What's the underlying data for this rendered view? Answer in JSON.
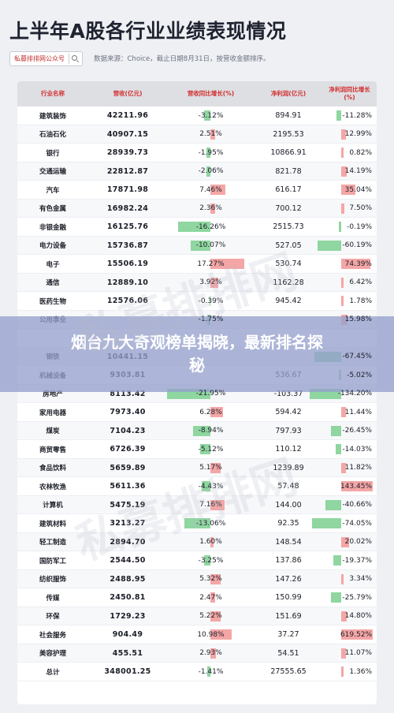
{
  "title": "上半年A股各行业业绩表现情况",
  "source": {
    "brand": "私募排排网公众号",
    "text": "数据来源：Choice，截止日期8月31日，按营收金额排序。"
  },
  "banner": "烟台九大奇观榜单揭晓，最新排名探秘",
  "watermark": "私募排排网",
  "colors": {
    "header_text": "#d22f2f",
    "pos_bar": "#f4a6a6",
    "neg_bar": "#8fd6a0",
    "banner": "#969ecd"
  },
  "table": {
    "columns": [
      "行业名称",
      "营收(亿元)",
      "营收同比增长(%)",
      "净利润(亿元)",
      "净利润同比增长(%)"
    ],
    "rows": [
      {
        "name": "建筑装饰",
        "revenue": "42211.96",
        "rev_growth": "-3.12%",
        "rg": -3.12,
        "net_profit": "894.91",
        "np_growth": "-11.28%",
        "npg": -11.28
      },
      {
        "name": "石油石化",
        "revenue": "40907.15",
        "rev_growth": "2.51%",
        "rg": 2.51,
        "net_profit": "2195.53",
        "np_growth": "12.99%",
        "npg": 12.99
      },
      {
        "name": "银行",
        "revenue": "28939.73",
        "rev_growth": "-1.95%",
        "rg": -1.95,
        "net_profit": "10866.91",
        "np_growth": "0.82%",
        "npg": 0.82
      },
      {
        "name": "交通运输",
        "revenue": "22812.87",
        "rev_growth": "-2.06%",
        "rg": -2.06,
        "net_profit": "821.78",
        "np_growth": "14.19%",
        "npg": 14.19
      },
      {
        "name": "汽车",
        "revenue": "17871.98",
        "rev_growth": "7.46%",
        "rg": 7.46,
        "net_profit": "616.17",
        "np_growth": "35.04%",
        "npg": 35.04
      },
      {
        "name": "有色金属",
        "revenue": "16982.24",
        "rev_growth": "2.36%",
        "rg": 2.36,
        "net_profit": "700.12",
        "np_growth": "7.50%",
        "npg": 7.5
      },
      {
        "name": "非银金融",
        "revenue": "16125.76",
        "rev_growth": "-16.26%",
        "rg": -16.26,
        "net_profit": "2515.73",
        "np_growth": "-0.19%",
        "npg": -0.19
      },
      {
        "name": "电力设备",
        "revenue": "15736.87",
        "rev_growth": "-10.07%",
        "rg": -10.07,
        "net_profit": "527.05",
        "np_growth": "-60.19%",
        "npg": -60.19
      },
      {
        "name": "电子",
        "revenue": "15506.19",
        "rev_growth": "17.27%",
        "rg": 17.27,
        "net_profit": "530.74",
        "np_growth": "74.39%",
        "npg": 74.39
      },
      {
        "name": "通信",
        "revenue": "12889.10",
        "rev_growth": "3.92%",
        "rg": 3.92,
        "net_profit": "1162.28",
        "np_growth": "6.42%",
        "npg": 6.42
      },
      {
        "name": "医药生物",
        "revenue": "12576.06",
        "rev_growth": "-0.39%",
        "rg": -0.39,
        "net_profit": "945.42",
        "np_growth": "1.78%",
        "npg": 1.78
      },
      {
        "name": "公用事业",
        "revenue": "",
        "rev_growth": "-1.75%",
        "rg": -1.75,
        "net_profit": "",
        "np_growth": "15.98%",
        "npg": 15.98
      },
      {
        "name": "",
        "revenue": "",
        "rev_growth": "",
        "rg": 0,
        "net_profit": "",
        "np_growth": "",
        "npg": 0
      },
      {
        "name": "钢铁",
        "revenue": "10441.15",
        "rev_growth": "",
        "rg": 0,
        "net_profit": "",
        "np_growth": "-67.45%",
        "npg": -67.45
      },
      {
        "name": "机械设备",
        "revenue": "9303.81",
        "rev_growth": "",
        "rg": 0,
        "net_profit": "536.67",
        "np_growth": "-5.02%",
        "npg": -5.02
      },
      {
        "name": "房地产",
        "revenue": "8113.42",
        "rev_growth": "-21.95%",
        "rg": -21.95,
        "net_profit": "-103.37",
        "np_growth": "-134.20%",
        "npg": -134.2
      },
      {
        "name": "家用电器",
        "revenue": "7973.40",
        "rev_growth": "6.28%",
        "rg": 6.28,
        "net_profit": "594.42",
        "np_growth": "11.44%",
        "npg": 11.44
      },
      {
        "name": "煤炭",
        "revenue": "7104.23",
        "rev_growth": "-8.94%",
        "rg": -8.94,
        "net_profit": "797.93",
        "np_growth": "-26.45%",
        "npg": -26.45
      },
      {
        "name": "商贸零售",
        "revenue": "6726.39",
        "rev_growth": "-5.12%",
        "rg": -5.12,
        "net_profit": "110.12",
        "np_growth": "-14.03%",
        "npg": -14.03
      },
      {
        "name": "食品饮料",
        "revenue": "5659.89",
        "rev_growth": "5.17%",
        "rg": 5.17,
        "net_profit": "1239.89",
        "np_growth": "11.82%",
        "npg": 11.82
      },
      {
        "name": "农林牧渔",
        "revenue": "5611.36",
        "rev_growth": "-4.43%",
        "rg": -4.43,
        "net_profit": "57.48",
        "np_growth": "143.45%",
        "npg": 143.45
      },
      {
        "name": "计算机",
        "revenue": "5475.19",
        "rev_growth": "7.16%",
        "rg": 7.16,
        "net_profit": "144.00",
        "np_growth": "-40.66%",
        "npg": -40.66
      },
      {
        "name": "建筑材料",
        "revenue": "3213.27",
        "rev_growth": "-13.06%",
        "rg": -13.06,
        "net_profit": "92.35",
        "np_growth": "-74.05%",
        "npg": -74.05
      },
      {
        "name": "轻工制造",
        "revenue": "2894.70",
        "rev_growth": "1.60%",
        "rg": 1.6,
        "net_profit": "148.54",
        "np_growth": "20.02%",
        "npg": 20.02
      },
      {
        "name": "国防军工",
        "revenue": "2544.50",
        "rev_growth": "-3.25%",
        "rg": -3.25,
        "net_profit": "137.86",
        "np_growth": "-19.37%",
        "npg": -19.37
      },
      {
        "name": "纺织服饰",
        "revenue": "2488.95",
        "rev_growth": "5.32%",
        "rg": 5.32,
        "net_profit": "147.26",
        "np_growth": "3.34%",
        "npg": 3.34
      },
      {
        "name": "传媒",
        "revenue": "2450.81",
        "rev_growth": "2.47%",
        "rg": 2.47,
        "net_profit": "150.99",
        "np_growth": "-25.79%",
        "npg": -25.79
      },
      {
        "name": "环保",
        "revenue": "1729.23",
        "rev_growth": "5.22%",
        "rg": 5.22,
        "net_profit": "151.69",
        "np_growth": "14.80%",
        "npg": 14.8
      },
      {
        "name": "社会服务",
        "revenue": "904.49",
        "rev_growth": "10.98%",
        "rg": 10.98,
        "net_profit": "37.27",
        "np_growth": "619.52%",
        "npg": 619.52
      },
      {
        "name": "美容护理",
        "revenue": "455.51",
        "rev_growth": "2.93%",
        "rg": 2.93,
        "net_profit": "54.51",
        "np_growth": "11.07%",
        "npg": 11.07
      },
      {
        "name": "总计",
        "revenue": "348001.25",
        "rev_growth": "-1.41%",
        "rg": -1.41,
        "net_profit": "27555.65",
        "np_growth": "1.36%",
        "npg": 1.36
      }
    ]
  }
}
